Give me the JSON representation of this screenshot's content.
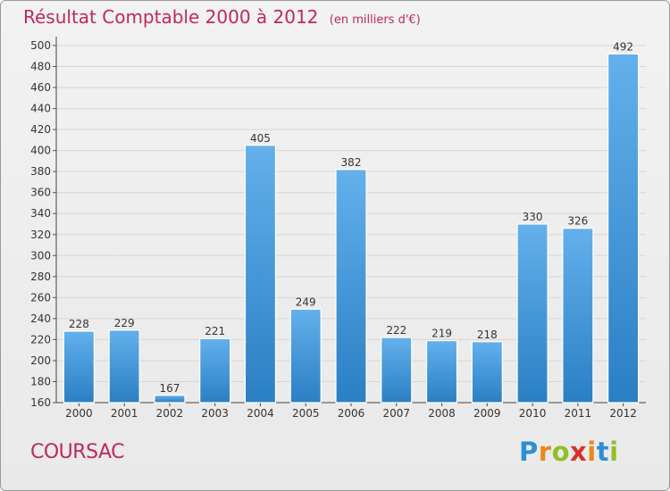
{
  "header": {
    "title": "Résultat Comptable 2000 à 2012",
    "subtitle": "(en milliers d'€)"
  },
  "location": "COURSAC",
  "logo": {
    "letters": [
      "P",
      "r",
      "o",
      "x",
      "i",
      "t",
      "i"
    ],
    "colors": [
      "#2b8fd6",
      "#e8891a",
      "#8fbf2a",
      "#d8312c",
      "#e8891a",
      "#2b8fd6",
      "#8fbf2a"
    ]
  },
  "colors": {
    "bar_light": "#63b0ec",
    "bar_dark": "#2a7fc3",
    "grid": "#d6d6d6",
    "title": "#c0285a"
  },
  "chart_data": {
    "type": "bar",
    "title": "Résultat Comptable 2000 à 2012",
    "subtitle": "(en milliers d'€)",
    "categories": [
      "2000",
      "2001",
      "2002",
      "2003",
      "2004",
      "2005",
      "2006",
      "2007",
      "2008",
      "2009",
      "2010",
      "2011",
      "2012"
    ],
    "values": [
      228,
      229,
      167,
      221,
      405,
      249,
      382,
      222,
      219,
      218,
      330,
      326,
      492
    ],
    "ylim": [
      160,
      500
    ],
    "yticks": [
      160,
      180,
      200,
      220,
      240,
      260,
      280,
      300,
      320,
      340,
      360,
      380,
      400,
      420,
      440,
      460,
      480,
      500
    ],
    "grid": true,
    "data_labels": true
  }
}
